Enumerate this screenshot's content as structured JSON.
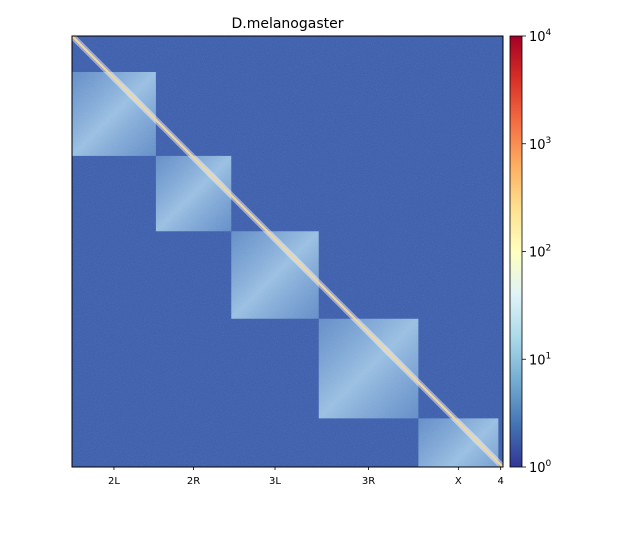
{
  "chart_data": {
    "type": "heatmap",
    "title": "D.melanogaster",
    "xlabel": "",
    "ylabel": "",
    "chromosomes": [
      {
        "label": "2L",
        "length_mb": 23.5
      },
      {
        "label": "2R",
        "length_mb": 21.1
      },
      {
        "label": "3L",
        "length_mb": 24.5
      },
      {
        "label": "3R",
        "length_mb": 27.9
      },
      {
        "label": "X",
        "length_mb": 22.4
      },
      {
        "label": "4",
        "length_mb": 1.3
      }
    ],
    "colorbar": {
      "scale": "log",
      "range": [
        1,
        10000
      ],
      "ticks": [
        {
          "base": "10",
          "exp": "0"
        },
        {
          "base": "10",
          "exp": "1"
        },
        {
          "base": "10",
          "exp": "2"
        },
        {
          "base": "10",
          "exp": "3"
        },
        {
          "base": "10",
          "exp": "4"
        }
      ],
      "colormap": [
        "#313695",
        "#4575b4",
        "#74add1",
        "#abd9e9",
        "#e0f3f8",
        "#ffffbf",
        "#fee090",
        "#fdae61",
        "#f46d43",
        "#d73027",
        "#a50026"
      ]
    },
    "colors": {
      "background": "#3a5cab",
      "intra_block": "#6d9bd0",
      "diagonal": "#fdd38a"
    }
  }
}
